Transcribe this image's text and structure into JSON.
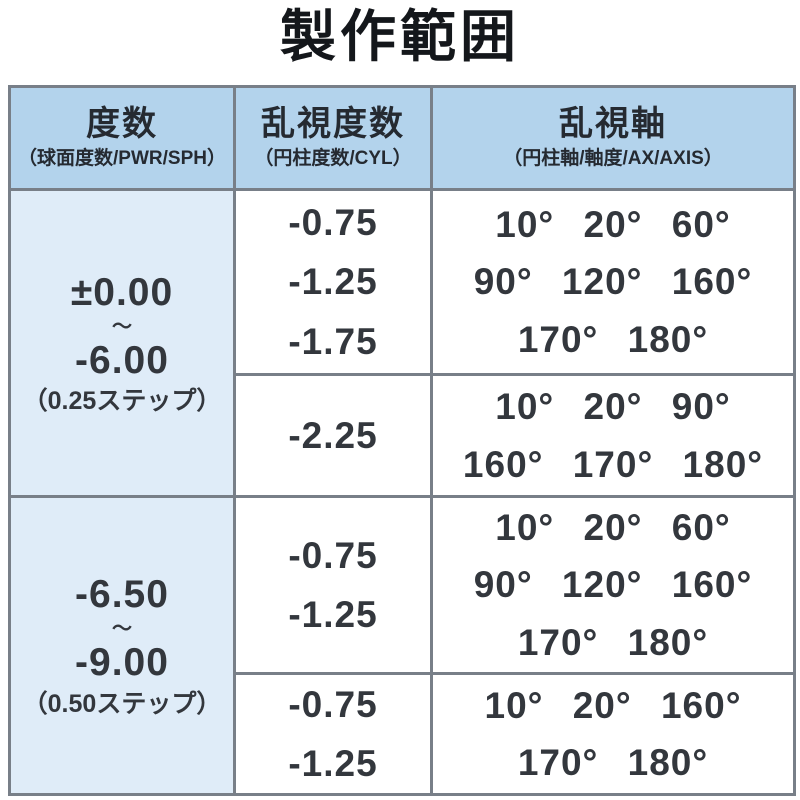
{
  "title": "製作範囲",
  "colors": {
    "header_bg": "#b3d3ec",
    "power_cell_bg": "#dfecf8",
    "border": "#787f88",
    "text": "#33373d"
  },
  "table": {
    "headers": [
      {
        "main": "度数",
        "sub": "（球面度数/PWR/SPH）"
      },
      {
        "main": "乱視度数",
        "sub": "（円柱度数/CYL）"
      },
      {
        "main": "乱視軸",
        "sub": "（円柱軸/軸度/AX/AXIS）"
      }
    ],
    "groups": [
      {
        "power": {
          "from": "±0.00",
          "tilde": "〜",
          "to": "-6.00",
          "step": "（0.25ステップ）"
        },
        "rows": [
          {
            "cyl": [
              "-0.75",
              "-1.25",
              "-1.75"
            ],
            "axis": [
              "10° 20° 60°",
              "90° 120° 160°",
              "170° 180°"
            ]
          },
          {
            "cyl": [
              "-2.25"
            ],
            "axis": [
              "10° 20° 90°",
              "160° 170° 180°"
            ]
          }
        ]
      },
      {
        "power": {
          "from": "-6.50",
          "tilde": "〜",
          "to": "-9.00",
          "step": "（0.50ステップ）"
        },
        "rows": [
          {
            "cyl": [
              "-0.75",
              "-1.25"
            ],
            "axis": [
              "10° 20° 60°",
              "90° 120° 160°",
              "170° 180°"
            ]
          },
          {
            "cyl": [
              "-0.75",
              "-1.25"
            ],
            "axis": [
              "10° 20° 160°",
              "170° 180°"
            ]
          }
        ]
      }
    ]
  }
}
